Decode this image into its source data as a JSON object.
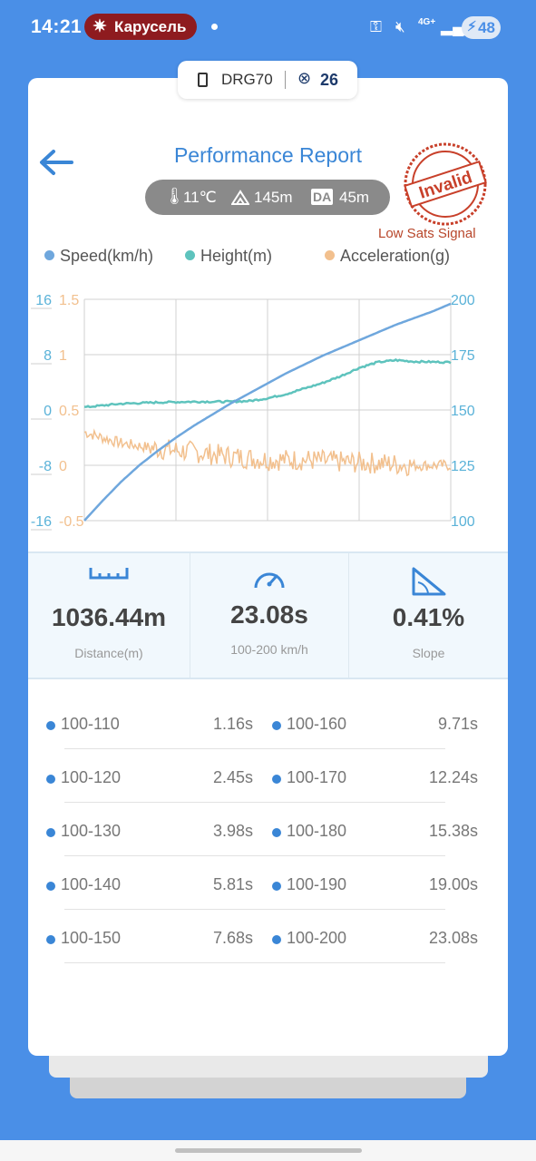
{
  "status": {
    "time": "14:21",
    "pill": "Карусель",
    "network": "4G+",
    "battery": "48"
  },
  "device": {
    "name": "DRG70",
    "satellites": "26"
  },
  "header": {
    "title": "Performance Report"
  },
  "env": {
    "temperature": "11℃",
    "altitude": "145m",
    "da_label": "DA",
    "density_altitude": "45m"
  },
  "stamp": {
    "text": "Invalid",
    "note": "Low Sats Signal",
    "color": "#c8402a"
  },
  "legend": [
    {
      "label": "Speed(km/h)",
      "color": "#6fa7dd"
    },
    {
      "label": "Height(m)",
      "color": "#5ec3bd"
    },
    {
      "label": "Acceleration(g)",
      "color": "#f2c08e"
    }
  ],
  "chart_data": {
    "type": "line",
    "grid": true,
    "x_range": [
      0,
      1
    ],
    "axes": {
      "left_outer": {
        "ticks": [
          "16",
          "8",
          "0",
          "-8",
          "-16"
        ],
        "range": [
          -16,
          16
        ],
        "color": "#5ab2d8"
      },
      "left_inner": {
        "ticks": [
          "1.5",
          "1",
          "0.5",
          "0",
          "-0.5"
        ],
        "range": [
          -0.5,
          1.5
        ],
        "color": "#f2c08e"
      },
      "right": {
        "ticks": [
          "200",
          "175",
          "150",
          "125",
          "100"
        ],
        "range": [
          100,
          200
        ],
        "color": "#5ab2d8"
      }
    },
    "series": [
      {
        "name": "Speed(km/h)",
        "axis": "right",
        "color": "#6fa7dd",
        "x": [
          0,
          0.05,
          0.1,
          0.15,
          0.2,
          0.25,
          0.3,
          0.35,
          0.4,
          0.45,
          0.5,
          0.55,
          0.6,
          0.65,
          0.7,
          0.75,
          0.8,
          0.85,
          0.9,
          0.95,
          1
        ],
        "y": [
          100,
          109,
          117.5,
          125,
          131.5,
          137.5,
          143,
          148,
          153,
          157.5,
          162,
          166.5,
          170.5,
          174.5,
          178,
          181.5,
          185,
          188.5,
          191.5,
          194.5,
          198
        ]
      },
      {
        "name": "Height(m)",
        "axis": "left_outer",
        "color": "#5ec3bd",
        "x": [
          0,
          0.1,
          0.2,
          0.3,
          0.4,
          0.45,
          0.5,
          0.55,
          0.6,
          0.65,
          0.7,
          0.75,
          0.8,
          0.85,
          0.9,
          1
        ],
        "y": [
          0.4,
          0.9,
          1.1,
          1.2,
          1.2,
          1.3,
          1.7,
          2.3,
          3.1,
          3.9,
          4.9,
          6.1,
          6.9,
          7.2,
          7.0,
          6.9
        ]
      },
      {
        "name": "Acceleration(g)",
        "axis": "left_inner",
        "color": "#f2c08e",
        "x": [
          0,
          0.1,
          0.2,
          0.3,
          0.4,
          0.5,
          0.6,
          0.7,
          0.8,
          0.9,
          1
        ],
        "y": [
          0.3,
          0.2,
          0.15,
          0.12,
          0.08,
          0.05,
          0.05,
          0.03,
          0.02,
          0.0,
          0.0
        ]
      }
    ]
  },
  "stats": [
    {
      "value": "1036.44m",
      "label": "Distance(m)"
    },
    {
      "value": "23.08s",
      "label": "100-200 km/h"
    },
    {
      "value": "0.41%",
      "label": "Slope"
    }
  ],
  "times": [
    {
      "range1": "100-110",
      "time1": "1.16s",
      "range2": "100-160",
      "time2": "9.71s"
    },
    {
      "range1": "100-120",
      "time1": "2.45s",
      "range2": "100-170",
      "time2": "12.24s"
    },
    {
      "range1": "100-130",
      "time1": "3.98s",
      "range2": "100-180",
      "time2": "15.38s"
    },
    {
      "range1": "100-140",
      "time1": "5.81s",
      "range2": "100-190",
      "time2": "19.00s"
    },
    {
      "range1": "100-150",
      "time1": "7.68s",
      "range2": "100-200",
      "time2": "23.08s"
    }
  ]
}
